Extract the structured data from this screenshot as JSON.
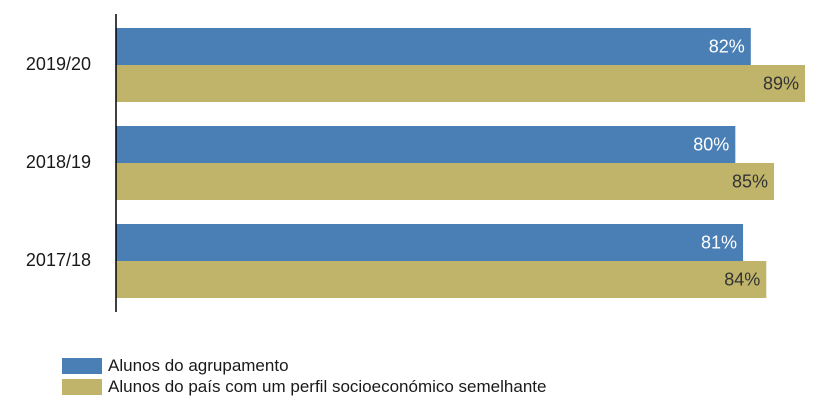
{
  "chart_data": {
    "type": "bar",
    "orientation": "horizontal",
    "categories": [
      "2019/20",
      "2018/19",
      "2017/18"
    ],
    "series": [
      {
        "name": "Alunos do agrupamento",
        "values": [
          82,
          80,
          81
        ],
        "labels": [
          "82%",
          "80%",
          "81%"
        ],
        "color": "#4a7fb5"
      },
      {
        "name": "Alunos do país com um perfil socioeconómico semelhante",
        "values": [
          89,
          85,
          84
        ],
        "labels": [
          "89%",
          "85%",
          "84%"
        ],
        "color": "#bfb46a"
      }
    ],
    "xlim": [
      0,
      89
    ],
    "grid": false,
    "legend_position": "bottom-left"
  }
}
